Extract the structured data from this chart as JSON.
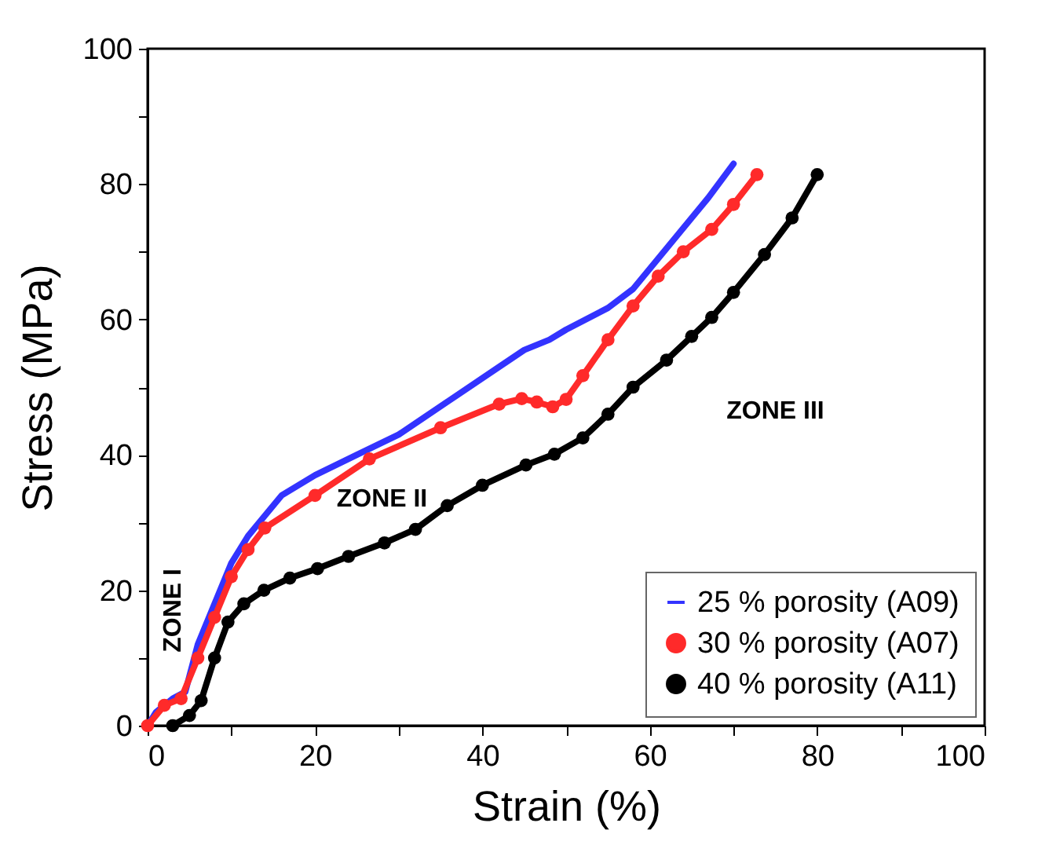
{
  "chart_data": {
    "type": "line",
    "xlabel": "Strain (%)",
    "ylabel": "Stress (MPa)",
    "xlim": [
      0,
      100
    ],
    "ylim": [
      0,
      100
    ],
    "xticks": [
      0,
      {
        "value": 10,
        "label": null
      },
      20,
      {
        "value": 30,
        "label": null
      },
      40,
      {
        "value": 50,
        "label": null
      },
      60,
      {
        "value": 70,
        "label": null
      },
      80,
      {
        "value": 90,
        "label": null
      },
      100
    ],
    "yticks": [
      0,
      {
        "value": 10,
        "label": null
      },
      20,
      {
        "value": 30,
        "label": null
      },
      40,
      {
        "value": 50,
        "label": null
      },
      60,
      {
        "value": 70,
        "label": null
      },
      80,
      {
        "value": 90,
        "label": null
      },
      100
    ],
    "grid": false,
    "legend": "bottom right",
    "annotations": [
      "ZONE I",
      "ZONE II",
      "ZONE III"
    ],
    "series": [
      {
        "name": "25 % porosity (A09)",
        "color": "#3333ff",
        "marker": "none",
        "x": [
          0,
          1,
          3,
          4.5,
          6,
          8,
          10,
          12,
          14,
          16,
          20,
          25,
          30,
          36,
          42,
          45,
          48,
          50,
          55,
          58,
          61,
          65,
          67,
          70
        ],
        "values": [
          0,
          2,
          4,
          5,
          12,
          18,
          24,
          28,
          31,
          34,
          37,
          40,
          43,
          48,
          53,
          55.5,
          57,
          58.5,
          61.7,
          64.5,
          69,
          75,
          78,
          83
        ]
      },
      {
        "name": "30 % porosity (A07)",
        "color": "#ff2a2a",
        "marker": "circle",
        "x": [
          0,
          2,
          4,
          6,
          8,
          10,
          12,
          14,
          20,
          26.5,
          35,
          42,
          44.7,
          46.5,
          48.4,
          50,
          52,
          55,
          58,
          61,
          64,
          67.4,
          70,
          72.8
        ],
        "values": [
          0,
          3,
          4,
          10,
          16,
          22,
          26,
          29.2,
          34,
          39.4,
          44,
          47.5,
          48.3,
          47.8,
          47.1,
          48.2,
          51.7,
          57,
          62,
          66.4,
          70,
          73.3,
          77,
          81.4
        ]
      },
      {
        "name": "40 % porosity (A11)",
        "color": "#000000",
        "marker": "circle",
        "x": [
          3,
          5,
          6.4,
          8,
          9.6,
          11.5,
          13.9,
          17,
          20.3,
          24,
          28.3,
          32,
          35.8,
          40,
          45.2,
          48.6,
          52,
          55,
          58,
          62,
          65,
          67.4,
          70,
          73.7,
          77,
          80
        ],
        "values": [
          0,
          1.5,
          3.7,
          10,
          15.3,
          18,
          20,
          21.8,
          23.2,
          25,
          27,
          29,
          32.5,
          35.5,
          38.5,
          40.1,
          42.5,
          46,
          50,
          54,
          57.5,
          60.3,
          64,
          69.6,
          75,
          81.4
        ]
      }
    ]
  }
}
